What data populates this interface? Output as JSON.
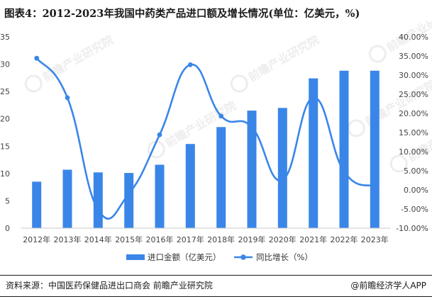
{
  "title": "图表4：2012-2023年我国中药类产品进口额及增长情况(单位：亿美元，%)",
  "source": "资料来源：中国医药保健品进出口商会 前瞻产业研究院",
  "brand": "@前瞻经济学人APP",
  "watermark": "前瞻产业研究院",
  "chart_data": {
    "type": "bar",
    "categories": [
      "2012年",
      "2013年",
      "2014年",
      "2015年",
      "2016年",
      "2017年",
      "2018年",
      "2019年",
      "2020年",
      "2021年",
      "2022年",
      "2023年"
    ],
    "series": [
      {
        "name": "进口金额（亿美元）",
        "type": "bar",
        "axis": "left",
        "values": [
          8.5,
          10.7,
          10.2,
          10.1,
          11.6,
          15.4,
          18.5,
          21.5,
          22.0,
          27.4,
          28.8,
          28.8
        ]
      },
      {
        "name": "同比增长（%）",
        "type": "line",
        "axis": "right",
        "values": [
          34.4,
          24.1,
          -5.2,
          -1.0,
          14.4,
          32.7,
          19.3,
          16.4,
          2.6,
          24.1,
          4.8,
          0.9
        ]
      }
    ],
    "y_left": {
      "min": 0,
      "max": 35,
      "ticks": [
        "0",
        "5",
        "10",
        "15",
        "20",
        "25",
        "30",
        "35"
      ]
    },
    "y_right": {
      "min": -10,
      "max": 40,
      "ticks": [
        "-10.00%",
        "-5.00%",
        "0.00%",
        "5.00%",
        "10.00%",
        "15.00%",
        "20.00%",
        "25.00%",
        "30.00%",
        "35.00%",
        "40.00%"
      ]
    },
    "legend_position": "bottom",
    "grid": false,
    "colors": {
      "bar": "#3a86e8",
      "line": "#3a86e8"
    }
  }
}
